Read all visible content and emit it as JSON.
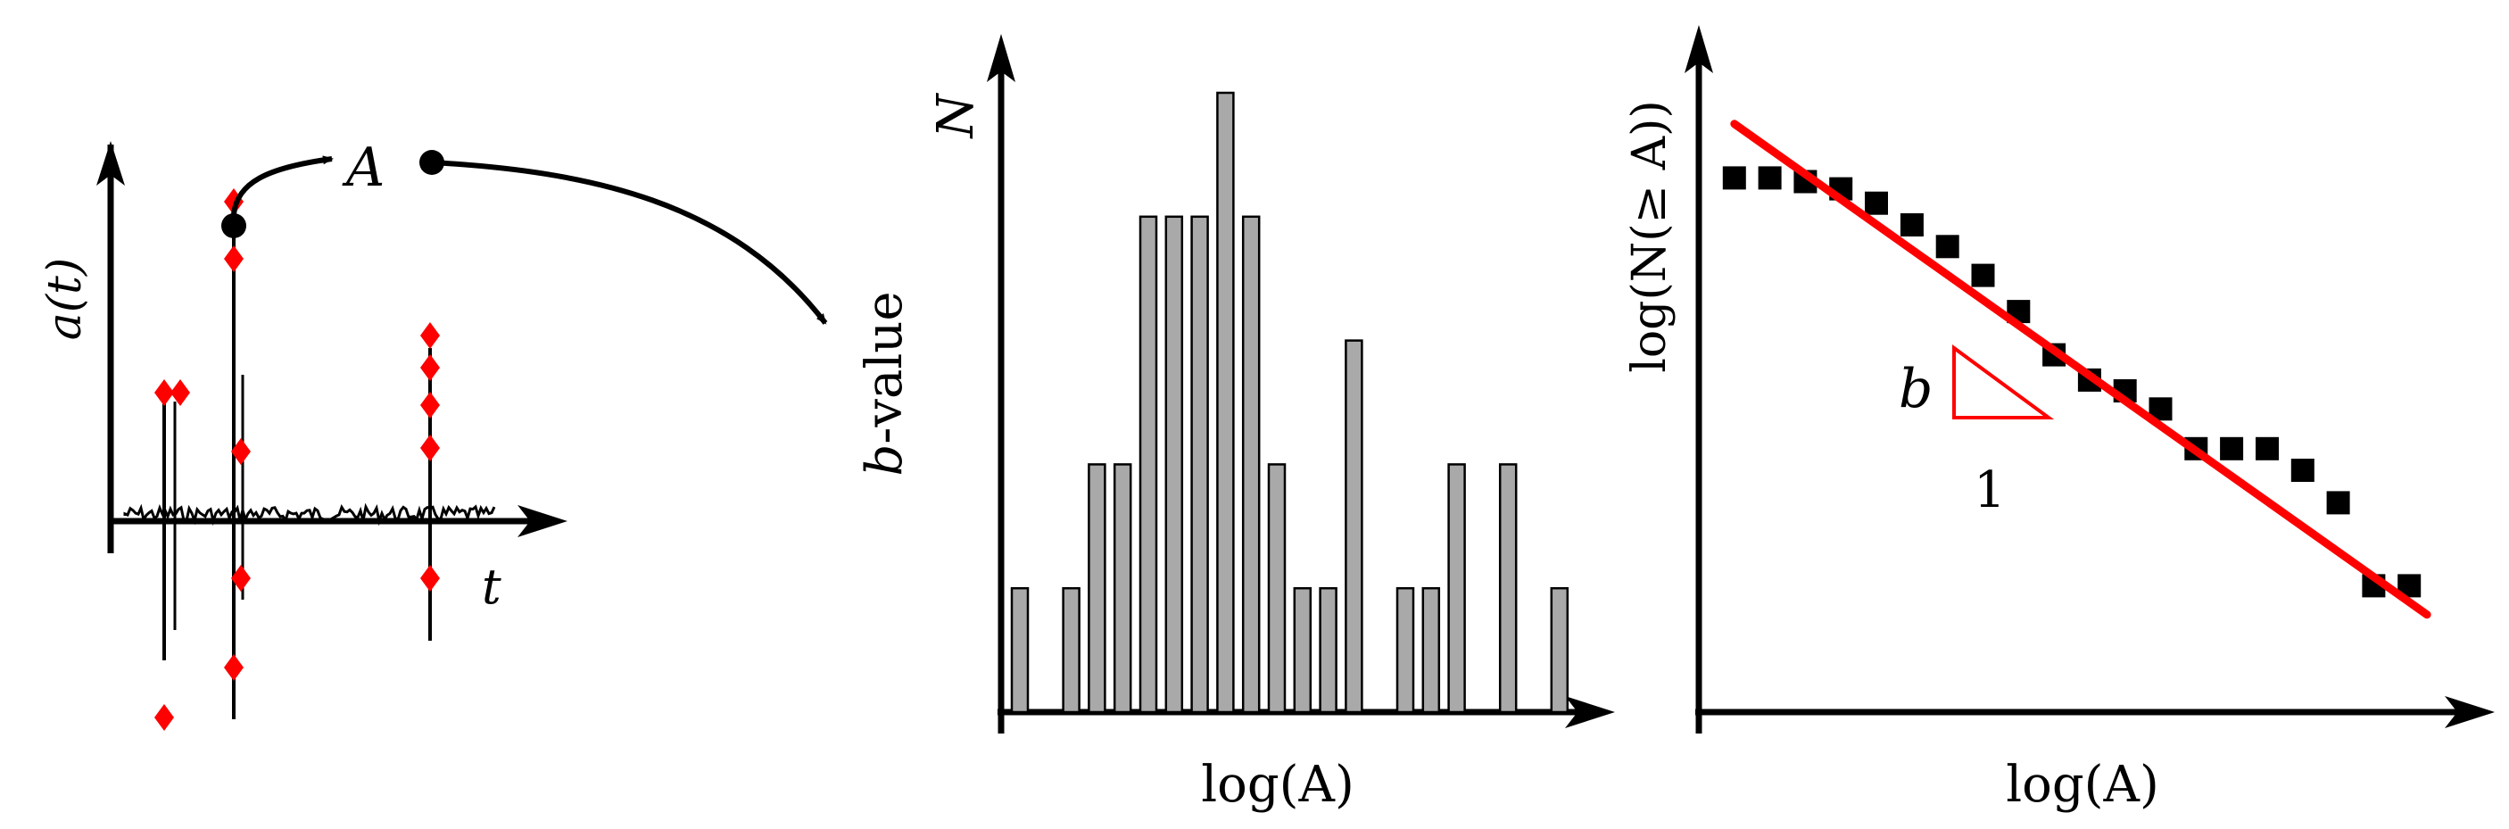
{
  "colors": {
    "ink": "#000000",
    "bar_fill": "#a9a9a9",
    "fit_line": "#ff0000",
    "marker": "#ff0000"
  },
  "panel1": {
    "y_label": "a(t)",
    "x_label": "t",
    "amplitude_symbol": "A",
    "result_label_italic": "b",
    "result_label_rest": "-value"
  },
  "chart_data": [
    {
      "type": "bar",
      "title": "",
      "xlabel": "log(A)",
      "ylabel": "N",
      "ylim": [
        0,
        5
      ],
      "values": [
        1,
        0,
        1,
        2,
        2,
        4,
        4,
        4,
        5,
        4,
        2,
        1,
        1,
        3,
        0,
        1,
        1,
        2,
        0,
        2,
        0,
        1
      ]
    },
    {
      "type": "scatter",
      "title": "",
      "xlabel": "log(A)",
      "ylabel": "log(N(≥ A))",
      "x": [
        1,
        2,
        3,
        4,
        5,
        6,
        7,
        8,
        9,
        10,
        11,
        12,
        13,
        14,
        15,
        16,
        17,
        18,
        19,
        20
      ],
      "y": [
        14.8,
        14.8,
        14.7,
        14.5,
        14.1,
        13.5,
        12.9,
        12.1,
        11.1,
        9.9,
        9.2,
        8.9,
        8.4,
        7.3,
        7.3,
        7.3,
        6.7,
        5.8,
        3.5,
        3.5
      ],
      "fit": {
        "x": [
          1,
          20.5
        ],
        "y": [
          16.3,
          2.7
        ],
        "slope_label": "b",
        "run_label": "1"
      },
      "xlim": [
        0,
        21
      ],
      "ylim": [
        0,
        18
      ]
    }
  ]
}
